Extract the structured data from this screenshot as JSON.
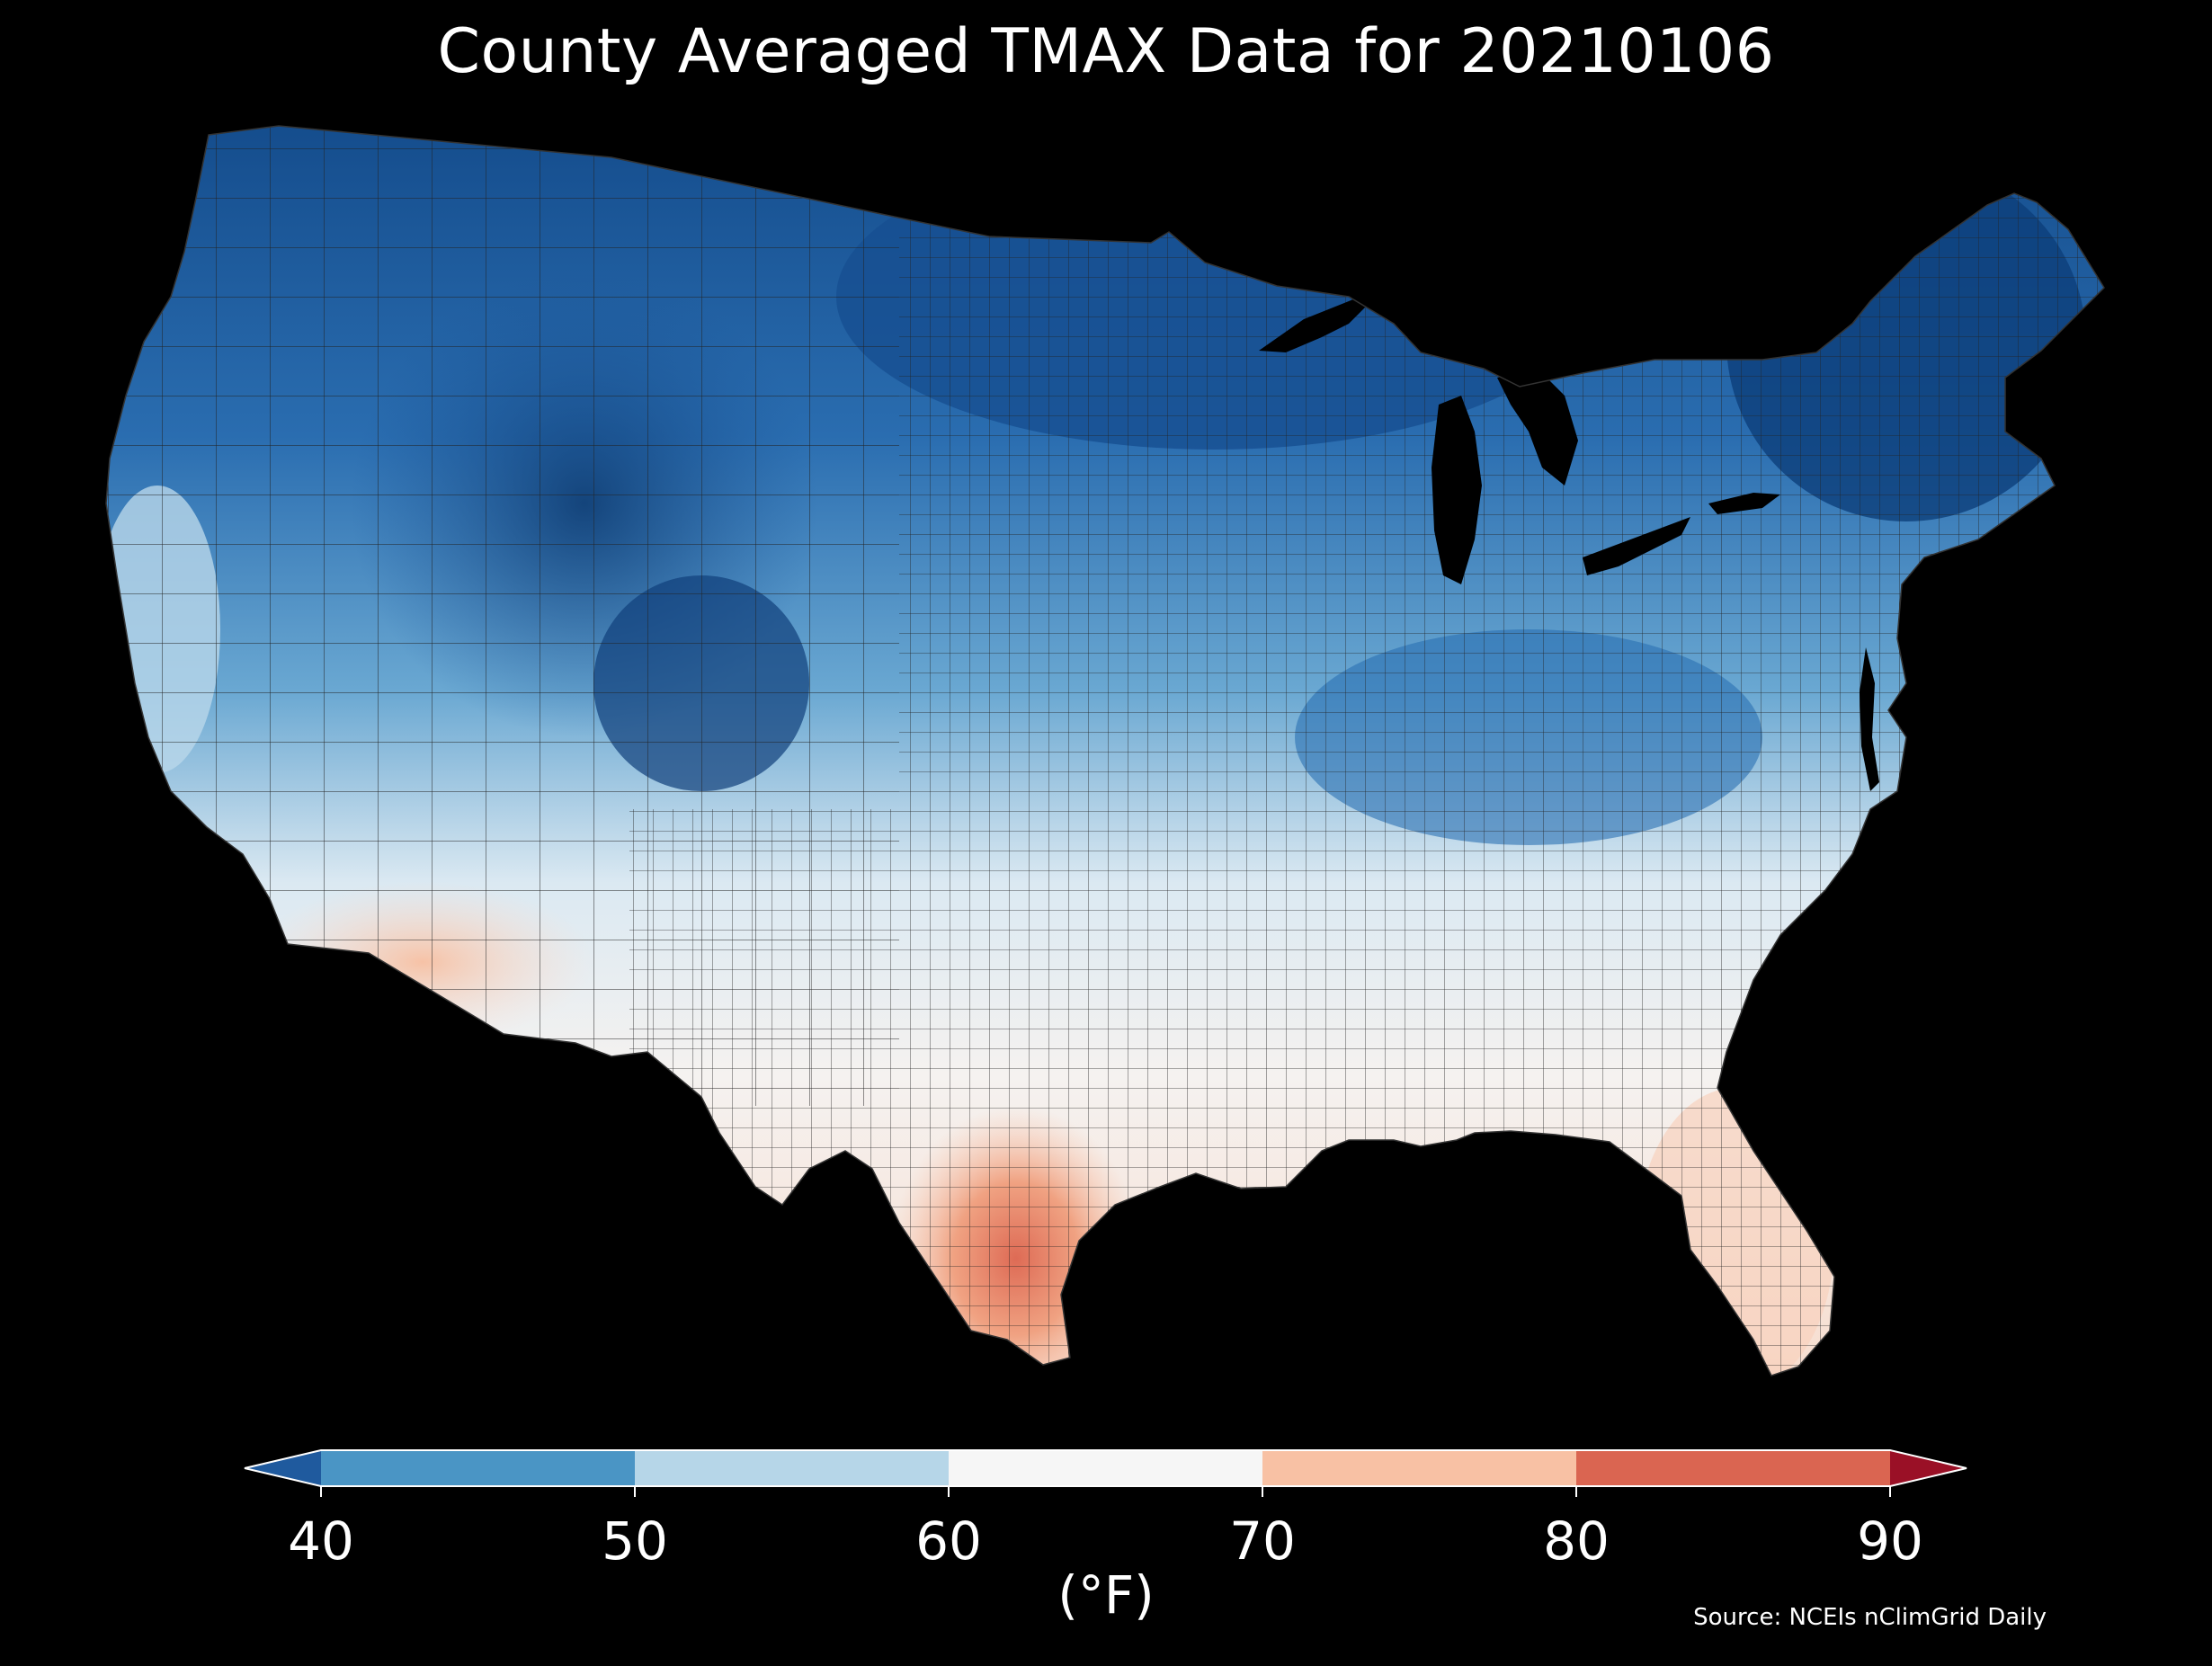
{
  "title": "County Averaged TMAX Data for 20210106",
  "colorbar": {
    "ticks": [
      "40",
      "50",
      "60",
      "70",
      "80",
      "90"
    ],
    "unit": "(°F)",
    "bins": [
      {
        "range": "<40",
        "color": "#1f5a9e"
      },
      {
        "range": "40-50",
        "color": "#4a95c5"
      },
      {
        "range": "50-60",
        "color": "#b6d6e8"
      },
      {
        "range": "60-70",
        "color": "#f6f6f6"
      },
      {
        "range": "70-80",
        "color": "#f8c1a4"
      },
      {
        "range": "80-90",
        "color": "#da6551"
      },
      {
        "range": ">90",
        "color": "#9a1026"
      }
    ]
  },
  "source": "Source: NCEIs nClimGrid Daily",
  "colors": {
    "background": "#000000",
    "lake": "#000000",
    "county_border": "#222222"
  }
}
